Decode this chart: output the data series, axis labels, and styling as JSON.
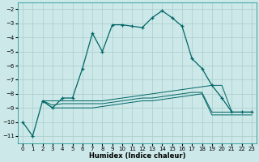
{
  "xlabel": "Humidex (Indice chaleur)",
  "bg_color": "#cce8e8",
  "grid_color": "#aacccc",
  "line_color": "#006666",
  "xlim": [
    -0.5,
    23.5
  ],
  "ylim": [
    -11.5,
    -1.5
  ],
  "yticks": [
    -11,
    -10,
    -9,
    -8,
    -7,
    -6,
    -5,
    -4,
    -3,
    -2
  ],
  "xticks": [
    0,
    1,
    2,
    3,
    4,
    5,
    6,
    7,
    8,
    9,
    10,
    11,
    12,
    13,
    14,
    15,
    16,
    17,
    18,
    19,
    20,
    21,
    22,
    23
  ],
  "series1_x": [
    0,
    1,
    2,
    3,
    4,
    5,
    6,
    7,
    8,
    9,
    10,
    11,
    12,
    13,
    14,
    15,
    16,
    17,
    18,
    19,
    20,
    21,
    22,
    23
  ],
  "series1_y": [
    -10,
    -11,
    -8.5,
    -9.0,
    -8.3,
    -8.3,
    -6.2,
    -3.7,
    -5.0,
    -3.1,
    -3.1,
    -3.2,
    -3.3,
    -2.6,
    -2.1,
    -2.6,
    -3.2,
    -5.5,
    -6.2,
    -7.4,
    -8.3,
    -9.3,
    -9.3,
    -9.3
  ],
  "series2_x": [
    2,
    3,
    4,
    5,
    6,
    7,
    8,
    9,
    10,
    11,
    12,
    13,
    14,
    15,
    16,
    17,
    18,
    19,
    20,
    21,
    22,
    23
  ],
  "series2_y": [
    -8.5,
    -8.5,
    -8.5,
    -8.5,
    -8.5,
    -8.5,
    -8.5,
    -8.4,
    -8.3,
    -8.2,
    -8.1,
    -8.0,
    -7.9,
    -7.8,
    -7.7,
    -7.6,
    -7.5,
    -7.4,
    -7.4,
    -9.3,
    -9.3,
    -9.3
  ],
  "series3_x": [
    2,
    3,
    4,
    5,
    6,
    7,
    8,
    9,
    10,
    11,
    12,
    13,
    14,
    15,
    16,
    17,
    18,
    19,
    20,
    21,
    22,
    23
  ],
  "series3_y": [
    -8.5,
    -8.8,
    -8.7,
    -8.7,
    -8.7,
    -8.7,
    -8.7,
    -8.6,
    -8.5,
    -8.4,
    -8.3,
    -8.3,
    -8.2,
    -8.1,
    -8.0,
    -7.9,
    -7.9,
    -9.3,
    -9.3,
    -9.3,
    -9.3,
    -9.3
  ],
  "series4_x": [
    2,
    3,
    4,
    5,
    6,
    7,
    8,
    9,
    10,
    11,
    12,
    13,
    14,
    15,
    16,
    17,
    18,
    19,
    20,
    21,
    22,
    23
  ],
  "series4_y": [
    -8.5,
    -9.0,
    -9.0,
    -9.0,
    -9.0,
    -9.0,
    -8.9,
    -8.8,
    -8.7,
    -8.6,
    -8.5,
    -8.5,
    -8.4,
    -8.3,
    -8.2,
    -8.1,
    -8.0,
    -9.5,
    -9.5,
    -9.5,
    -9.5,
    -9.5
  ]
}
